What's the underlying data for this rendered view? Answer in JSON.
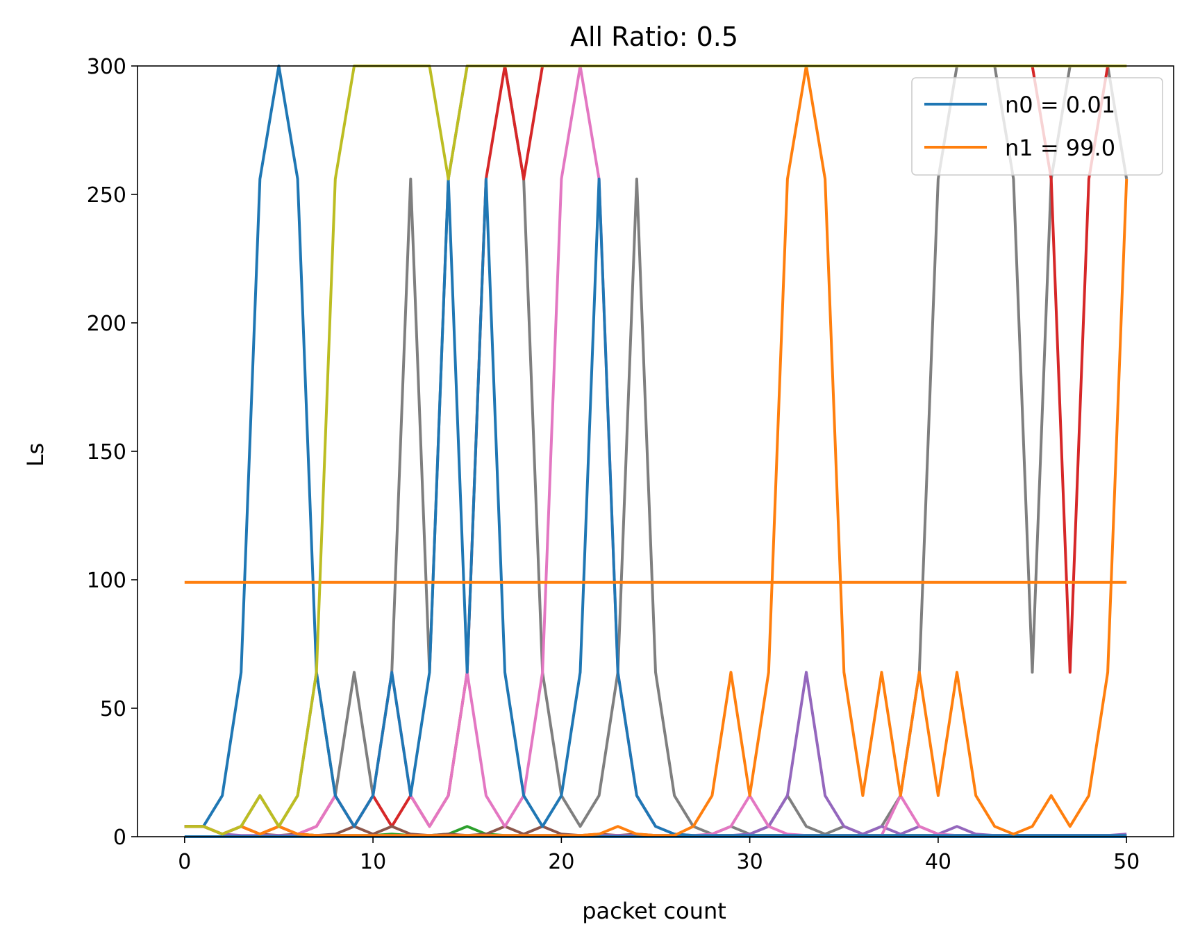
{
  "chart_data": {
    "type": "line",
    "title": "All Ratio: 0.5",
    "xlabel": "packet count",
    "ylabel": "Ls",
    "xlim": [
      -2.5,
      52.5
    ],
    "ylim": [
      0,
      300
    ],
    "xticks": [
      0,
      10,
      20,
      30,
      40,
      50
    ],
    "yticks": [
      0,
      50,
      100,
      150,
      200,
      250,
      300
    ],
    "legend_position": "top-right",
    "legend": [
      {
        "label": "n0 = 0.01",
        "color": "#1f77b4"
      },
      {
        "label": "n1 = 99.0",
        "color": "#ff7f0e"
      }
    ],
    "series": [
      {
        "name": "gray",
        "color": "#7f7f7f",
        "x": [
          0,
          1,
          2,
          3,
          4,
          5,
          6,
          7,
          8,
          9,
          10,
          11,
          12,
          13,
          14,
          15,
          16,
          17,
          18,
          19,
          20,
          21,
          22,
          23,
          24,
          25,
          26,
          27,
          28,
          29,
          30,
          31,
          32,
          33,
          34,
          35,
          36,
          37,
          38,
          39,
          40,
          41,
          42,
          43,
          44,
          45,
          46,
          47,
          48,
          49,
          50
        ],
        "y": [
          4,
          4,
          1,
          4,
          16,
          4,
          16,
          64,
          16,
          64,
          16,
          64,
          256,
          64,
          256,
          300,
          300,
          300,
          256,
          64,
          16,
          4,
          16,
          64,
          256,
          64,
          16,
          4,
          1,
          4,
          1,
          4,
          16,
          4,
          1,
          4,
          1,
          4,
          16,
          64,
          256,
          300,
          300,
          300,
          256,
          64,
          256,
          300,
          300,
          300,
          256
        ]
      },
      {
        "name": "red",
        "color": "#d62728",
        "x": [
          0,
          1,
          2,
          3,
          4,
          5,
          6,
          7,
          8,
          9,
          10,
          11,
          12,
          13,
          14,
          15,
          16,
          17,
          18,
          19,
          20,
          21,
          22,
          23,
          24,
          25,
          26,
          27,
          28,
          29,
          30,
          31,
          32,
          33,
          34,
          35,
          36,
          37,
          38,
          39,
          40,
          41,
          42,
          43,
          44,
          45,
          46,
          47,
          48,
          49,
          50
        ],
        "y": [
          4,
          4,
          1,
          4,
          1,
          4,
          1,
          4,
          16,
          4,
          16,
          4,
          16,
          4,
          16,
          64,
          256,
          300,
          256,
          300,
          300,
          300,
          300,
          300,
          300,
          300,
          300,
          300,
          300,
          300,
          300,
          300,
          300,
          300,
          300,
          300,
          300,
          300,
          300,
          300,
          300,
          300,
          300,
          300,
          300,
          300,
          256,
          64,
          256,
          300,
          300
        ]
      },
      {
        "name": "green",
        "color": "#2ca02c",
        "x": [
          0,
          1,
          2,
          3,
          4,
          5,
          6,
          7,
          8,
          9,
          10,
          11,
          12,
          13,
          14,
          15,
          16,
          17,
          18,
          19,
          20,
          21,
          22,
          23,
          24,
          25,
          26,
          27,
          28,
          29,
          30,
          31,
          32,
          33,
          34,
          35,
          36,
          37,
          38,
          39,
          40,
          41,
          42,
          43,
          44,
          45,
          46,
          47,
          48,
          49,
          50
        ],
        "y": [
          4,
          4,
          1,
          4,
          1,
          4,
          1,
          0.5,
          0.5,
          0.5,
          0.5,
          1,
          0.5,
          0.5,
          1,
          4,
          1,
          0.5,
          0.5,
          0.5,
          0.5,
          0.5,
          0.5,
          0.5,
          0.5,
          0.5,
          0.5,
          0.5,
          0.5,
          0.5,
          0.5,
          0.5,
          0.5,
          0.5,
          0.5,
          0.5,
          0.5,
          0.5,
          0.5,
          0.5,
          0.5,
          0.5,
          0.5,
          0.5,
          0.5,
          0.5,
          0.5,
          0.5,
          0.5,
          0.5,
          0.5
        ]
      },
      {
        "name": "brown",
        "color": "#8c564b",
        "x": [
          0,
          1,
          2,
          3,
          4,
          5,
          6,
          7,
          8,
          9,
          10,
          11,
          12,
          13,
          14,
          15,
          16,
          17,
          18,
          19,
          20,
          21,
          22,
          23,
          24,
          25,
          26,
          27,
          28,
          29,
          30,
          31,
          32,
          33,
          34,
          35,
          36,
          37,
          38,
          39,
          40,
          41,
          42,
          43,
          44,
          45,
          46,
          47,
          48,
          49,
          50
        ],
        "y": [
          4,
          4,
          1,
          4,
          1,
          0.5,
          1,
          0.5,
          1,
          4,
          1,
          4,
          1,
          0.5,
          1,
          0.5,
          1,
          4,
          1,
          4,
          1,
          0.5,
          1,
          0.5,
          1,
          0.5,
          0.5,
          0.5,
          0.5,
          0.5,
          0.5,
          0.5,
          0.5,
          0.5,
          0.5,
          0.5,
          0.5,
          0.5,
          0.5,
          0.5,
          0.5,
          0.5,
          0.5,
          0.5,
          0.5,
          0.5,
          0.5,
          0.5,
          0.5,
          0.5,
          0.5
        ]
      },
      {
        "name": "purple",
        "color": "#9467bd",
        "x": [
          0,
          1,
          2,
          3,
          4,
          5,
          6,
          7,
          8,
          9,
          10,
          11,
          12,
          13,
          14,
          15,
          16,
          17,
          18,
          19,
          20,
          21,
          22,
          23,
          24,
          25,
          26,
          27,
          28,
          29,
          30,
          31,
          32,
          33,
          34,
          35,
          36,
          37,
          38,
          39,
          40,
          41,
          42,
          43,
          44,
          45,
          46,
          47,
          48,
          49,
          50
        ],
        "y": [
          4,
          4,
          1,
          0.5,
          0.5,
          0.5,
          0.5,
          0.5,
          0.5,
          0.5,
          0.5,
          0.5,
          0.5,
          0.5,
          0.5,
          0.5,
          0.5,
          0.5,
          0.5,
          0.5,
          0.5,
          0.5,
          0.5,
          0.5,
          0.5,
          0.5,
          0.5,
          0.5,
          0.5,
          0.5,
          1,
          4,
          16,
          64,
          16,
          4,
          1,
          4,
          1,
          4,
          1,
          4,
          1,
          0.5,
          0.5,
          0.5,
          0.5,
          0.5,
          0.5,
          0.5,
          1
        ]
      },
      {
        "name": "pink",
        "color": "#e377c2",
        "x": [
          0,
          1,
          2,
          3,
          4,
          5,
          6,
          7,
          8,
          9,
          10,
          11,
          12,
          13,
          14,
          15,
          16,
          17,
          18,
          19,
          20,
          21,
          22,
          23,
          24,
          25,
          26,
          27,
          28,
          29,
          30,
          31,
          32,
          33,
          34,
          35,
          36,
          37,
          38,
          39,
          40,
          41,
          42,
          43,
          44,
          45,
          46,
          47,
          48,
          49,
          50
        ],
        "y": [
          4,
          4,
          1,
          4,
          1,
          4,
          1,
          4,
          16,
          4,
          16,
          64,
          16,
          4,
          16,
          64,
          16,
          4,
          16,
          64,
          256,
          300,
          256,
          64,
          16,
          4,
          1,
          0.5,
          1,
          4,
          16,
          4,
          1,
          0.5,
          0.5,
          0.5,
          0.5,
          0.5,
          16,
          4,
          1,
          0.5,
          0.5,
          0.5,
          0.5,
          0.5,
          0.5,
          0.5,
          0.5,
          0.5,
          0.5
        ]
      },
      {
        "name": "blue",
        "color": "#1f77b4",
        "x": [
          0,
          1,
          2,
          3,
          4,
          5,
          6,
          7,
          8,
          9,
          10,
          11,
          12,
          13,
          14,
          15,
          16,
          17,
          18,
          19,
          20,
          21,
          22,
          23,
          24,
          25,
          26,
          27,
          28,
          29,
          30,
          31,
          32,
          33,
          34,
          35,
          36,
          37,
          38,
          39,
          40,
          41,
          42,
          43,
          44,
          45,
          46,
          47,
          48,
          49,
          50
        ],
        "y": [
          4,
          4,
          16,
          64,
          256,
          300,
          256,
          64,
          16,
          4,
          16,
          64,
          16,
          64,
          256,
          64,
          256,
          64,
          16,
          4,
          16,
          64,
          256,
          64,
          16,
          4,
          1,
          0.5,
          0.5,
          0.5,
          0.5,
          0.5,
          0.5,
          0.5,
          0.5,
          0.5,
          0.5,
          0.5,
          0.5,
          0.5,
          0.5,
          0.5,
          0.5,
          0.5,
          0.5,
          0.5,
          0.5,
          0.5,
          0.5,
          0.5,
          0.5
        ]
      },
      {
        "name": "n0 = 0.01",
        "color": "#1f77b4",
        "x": [
          0,
          50
        ],
        "y": [
          0.01,
          0.01
        ]
      },
      {
        "name": "orange",
        "color": "#ff7f0e",
        "x": [
          0,
          1,
          2,
          3,
          4,
          5,
          6,
          7,
          8,
          9,
          10,
          11,
          12,
          13,
          14,
          15,
          16,
          17,
          18,
          19,
          20,
          21,
          22,
          23,
          24,
          25,
          26,
          27,
          28,
          29,
          30,
          31,
          32,
          33,
          34,
          35,
          36,
          37,
          38,
          39,
          40,
          41,
          42,
          43,
          44,
          45,
          46,
          47,
          48,
          49,
          50
        ],
        "y": [
          4,
          4,
          1,
          4,
          1,
          4,
          1,
          0.5,
          0.5,
          0.5,
          0.5,
          0.5,
          0.5,
          0.5,
          0.5,
          0.5,
          0.5,
          0.5,
          0.5,
          0.5,
          0.5,
          0.5,
          1,
          4,
          1,
          0.5,
          0.5,
          4,
          16,
          64,
          16,
          64,
          256,
          300,
          256,
          64,
          16,
          64,
          16,
          64,
          16,
          64,
          16,
          4,
          1,
          4,
          16,
          4,
          16,
          64,
          256
        ]
      },
      {
        "name": "n1 = 99.0",
        "color": "#ff7f0e",
        "x": [
          0,
          50
        ],
        "y": [
          99,
          99
        ]
      },
      {
        "name": "olive",
        "color": "#bcbd22",
        "x": [
          0,
          1,
          2,
          3,
          4,
          5,
          6,
          7,
          8,
          9,
          10,
          11,
          12,
          13,
          14,
          15,
          16,
          17,
          18,
          19,
          20,
          21,
          22,
          23,
          24,
          25,
          26,
          27,
          28,
          29,
          30,
          31,
          32,
          33,
          34,
          35,
          36,
          37,
          38,
          39,
          40,
          41,
          42,
          43,
          44,
          45,
          46,
          47,
          48,
          49,
          50
        ],
        "y": [
          4,
          4,
          1,
          4,
          16,
          4,
          16,
          64,
          256,
          300,
          300,
          300,
          300,
          300,
          256,
          300,
          300,
          300,
          300,
          300,
          300,
          300,
          300,
          300,
          300,
          300,
          300,
          300,
          300,
          300,
          300,
          300,
          300,
          300,
          300,
          300,
          300,
          300,
          300,
          300,
          300,
          300,
          300,
          300,
          300,
          300,
          300,
          300,
          300,
          300,
          300
        ]
      }
    ]
  }
}
